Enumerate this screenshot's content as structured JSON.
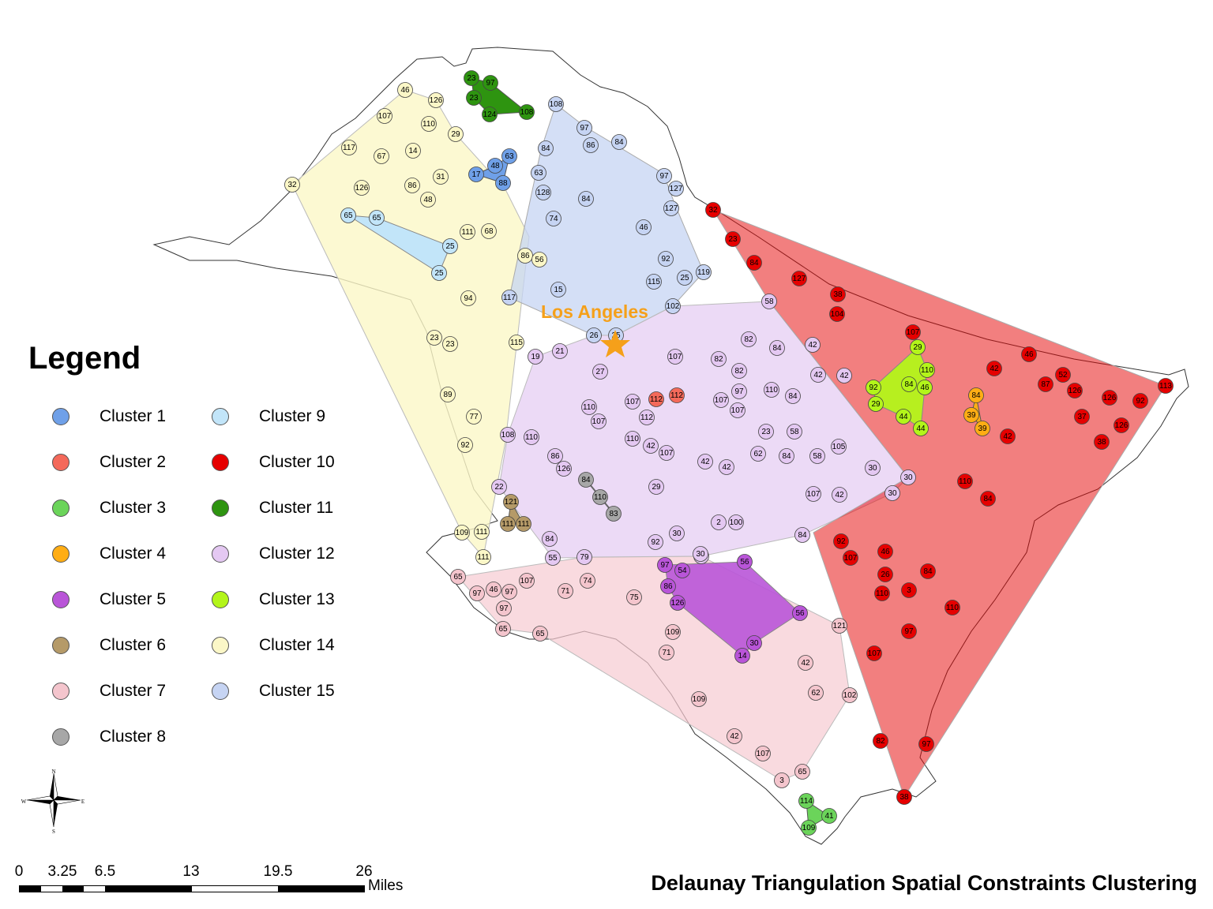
{
  "map": {
    "title": "Delaunay Triangulation Spatial Constraints Clustering",
    "city_label": "Los Angeles",
    "city_color": "#f5a01a",
    "legend_title": "Legend",
    "north_arrow_icon": "compass-rose-icon",
    "north_arrow_letters": {
      "n": "N",
      "s": "S",
      "e": "E",
      "w": "W"
    },
    "scale_bar": {
      "unit": "Miles",
      "ticks": [
        "0",
        "3.25",
        "6.5",
        "13",
        "19.5",
        "26"
      ],
      "tick_values": [
        0,
        3.25,
        6.5,
        13,
        19.5,
        26
      ]
    },
    "clusters": [
      {
        "name": "Cluster 1",
        "color": "#6fa0e8"
      },
      {
        "name": "Cluster 2",
        "color": "#f4695a"
      },
      {
        "name": "Cluster 3",
        "color": "#6bd45a"
      },
      {
        "name": "Cluster 4",
        "color": "#ffad14"
      },
      {
        "name": "Cluster 5",
        "color": "#b955d8"
      },
      {
        "name": "Cluster 6",
        "color": "#b59a68"
      },
      {
        "name": "Cluster 7",
        "color": "#f4c5cd"
      },
      {
        "name": "Cluster 8",
        "color": "#a7a7a7"
      },
      {
        "name": "Cluster 9",
        "color": "#c2e5f9"
      },
      {
        "name": "Cluster 10",
        "color": "#e60000"
      },
      {
        "name": "Cluster 11",
        "color": "#2e9410"
      },
      {
        "name": "Cluster 12",
        "color": "#e4c8f2"
      },
      {
        "name": "Cluster 13",
        "color": "#b3f51a"
      },
      {
        "name": "Cluster 14",
        "color": "#fbf7c7"
      },
      {
        "name": "Cluster 15",
        "color": "#c6d4f3"
      }
    ],
    "point_labels": {
      "c1": [
        "48",
        "63",
        "17",
        "88"
      ],
      "c2": [
        "112",
        "112"
      ],
      "c3": [
        "114",
        "41",
        "109"
      ],
      "c4": [
        "84",
        "39",
        "39"
      ],
      "c5": [
        "97",
        "54",
        "86",
        "126",
        "56",
        "56",
        "30",
        "14"
      ],
      "c6": [
        "121",
        "111",
        "111"
      ],
      "c7": [
        "65",
        "97",
        "46",
        "97",
        "107",
        "71",
        "74",
        "75",
        "97",
        "65",
        "65",
        "109",
        "71",
        "109",
        "42",
        "62",
        "102",
        "42",
        "107",
        "65",
        "3",
        "121"
      ],
      "c8": [
        "84",
        "110",
        "83"
      ],
      "c9": [
        "65",
        "65",
        "25",
        "25"
      ],
      "c10": [
        "32",
        "23",
        "84",
        "127",
        "38",
        "104",
        "107",
        "46",
        "42",
        "87",
        "52",
        "126",
        "126",
        "92",
        "113",
        "37",
        "126",
        "38",
        "42",
        "110",
        "84",
        "92",
        "107",
        "46",
        "26",
        "84",
        "110",
        "3",
        "110",
        "97",
        "107",
        "82",
        "97",
        "38"
      ],
      "c11": [
        "23",
        "97",
        "23",
        "124",
        "108"
      ],
      "c12": [
        "58",
        "82",
        "84",
        "42",
        "19",
        "21",
        "27",
        "107",
        "82",
        "82",
        "42",
        "42",
        "97",
        "110",
        "84",
        "107",
        "107",
        "112",
        "107",
        "110",
        "107",
        "110",
        "108",
        "110",
        "42",
        "42",
        "107",
        "86",
        "126",
        "62",
        "23",
        "58",
        "84",
        "58",
        "105",
        "42",
        "107",
        "30",
        "84",
        "30",
        "30",
        "29",
        "42",
        "2",
        "100",
        "30",
        "92",
        "22",
        "84",
        "55",
        "79",
        "126",
        "30"
      ],
      "c13": [
        "29",
        "110",
        "92",
        "84",
        "46",
        "29",
        "44",
        "44"
      ],
      "c14": [
        "46",
        "126",
        "107",
        "110",
        "29",
        "117",
        "67",
        "14",
        "31",
        "32",
        "126",
        "86",
        "48",
        "111",
        "68",
        "86",
        "56",
        "94",
        "23",
        "23",
        "115",
        "89",
        "77",
        "92",
        "109",
        "111",
        "111"
      ],
      "c15": [
        "108",
        "97",
        "86",
        "84",
        "84",
        "63",
        "128",
        "97",
        "84",
        "127",
        "127",
        "74",
        "46",
        "92",
        "115",
        "25",
        "119",
        "15",
        "117",
        "102",
        "26",
        "25"
      ]
    }
  }
}
